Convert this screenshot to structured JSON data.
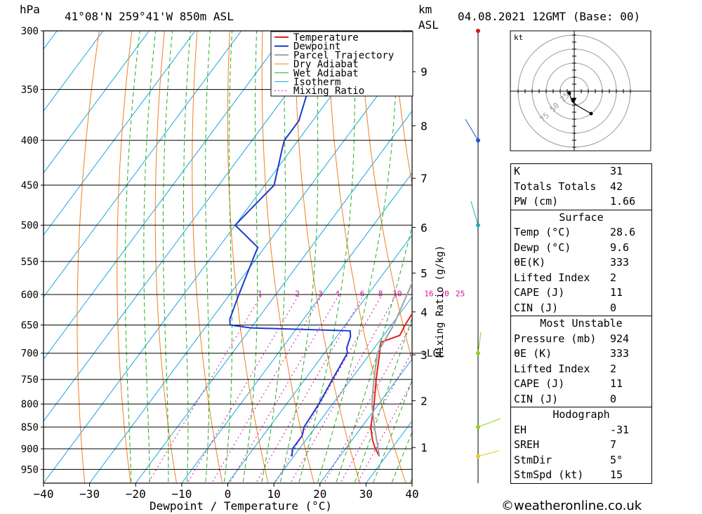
{
  "header": {
    "location": "41°08'N  259°41'W  850m  ASL",
    "date": "04.08.2021  12GMT  (Base: 00)",
    "pressure_unit": "hPa",
    "km_unit": "km",
    "asl_label": "ASL"
  },
  "chart_data": {
    "type": "line",
    "title": "41°08'N  259°41'W  850m  ASL",
    "xlabel": "Dewpoint / Temperature (°C)",
    "ylabel": "hPa",
    "secondary_ylabel": "Mixing Ratio (g/kg)",
    "y_scale": "log-pressure (inverted)",
    "xlim": [
      -40,
      40
    ],
    "ylim": [
      985,
      300
    ],
    "pressure_ticks": [
      300,
      350,
      400,
      450,
      500,
      550,
      600,
      650,
      700,
      750,
      800,
      850,
      900,
      950
    ],
    "x_ticks": [
      -40,
      -30,
      -20,
      -10,
      0,
      10,
      20,
      30,
      40
    ],
    "altitude_km_ticks": [
      "1",
      "2",
      "3",
      "4",
      "5",
      "6",
      "7",
      "8",
      "9"
    ],
    "altitude_km_pressures": [
      897,
      793,
      703,
      628,
      567,
      503,
      442,
      385,
      334
    ],
    "lcl_label": "LCL",
    "lcl_pressure": 700,
    "mixing_ratio_labels": [
      "1",
      "2",
      "3",
      "4",
      "6",
      "8",
      "10",
      "16",
      "20",
      "25"
    ],
    "mixing_ratio_values": [
      1,
      2,
      3,
      4,
      6,
      8,
      10,
      16,
      20,
      25
    ],
    "legend": [
      "Temperature",
      "Dewpoint",
      "Parcel Trajectory",
      "Dry Adiabat",
      "Wet Adiabat",
      "Isotherm",
      "Mixing Ratio"
    ],
    "series": [
      {
        "name": "Temperature",
        "color": "#e02020",
        "p": [
          918,
          900,
          880,
          850,
          800,
          750,
          700,
          680,
          668,
          650,
          620,
          600,
          560,
          540,
          500,
          490,
          470,
          450,
          420,
          400,
          380,
          350,
          320,
          310,
          300
        ],
        "t": [
          28.6,
          26.5,
          24.5,
          22,
          19,
          15.5,
          12,
          10.5,
          13.5,
          13,
          12.5,
          12,
          9,
          6.5,
          4,
          5,
          3,
          0,
          -2,
          -4,
          -8,
          -12,
          -13,
          -13,
          -16
        ]
      },
      {
        "name": "Dewpoint",
        "color": "#1a3ad0",
        "p": [
          918,
          900,
          870,
          850,
          800,
          750,
          700,
          690,
          670,
          660,
          655,
          650,
          640,
          620,
          600,
          540,
          530,
          500,
          450,
          410,
          400,
          380,
          350,
          330,
          320,
          300
        ],
        "t": [
          9.6,
          8.5,
          8.5,
          7.5,
          7,
          6,
          5,
          4,
          3,
          2,
          -20,
          -25,
          -26,
          -27,
          -28,
          -31,
          -31.5,
          -40,
          -38,
          -42,
          -43,
          -43,
          -46,
          -47,
          -45,
          -35
        ]
      },
      {
        "name": "Parcel Trajectory",
        "color": "#a0a0a0",
        "p": [
          918,
          850,
          800,
          750,
          700,
          650,
          600,
          550,
          500,
          450,
          400,
          350,
          300
        ],
        "t": [
          28.6,
          22.8,
          18.5,
          15,
          11.5,
          10.5,
          8.5,
          6.3,
          4,
          1.4,
          -3.5,
          -10,
          -18
        ]
      }
    ],
    "wind_profile": {
      "p": [
        300,
        400,
        500,
        700,
        850,
        918
      ],
      "colors": [
        "#d01a1a",
        "#2050e0",
        "#20b0b0",
        "#90d020",
        "#90d020",
        "#e0d020"
      ]
    },
    "hodograph": {
      "unit": "kt",
      "ring_labels": [
        "25",
        "50",
        "75"
      ]
    }
  },
  "indices": {
    "summary": [
      {
        "label": "K",
        "value": "31"
      },
      {
        "label": "Totals Totals",
        "value": "42"
      },
      {
        "label": "PW (cm)",
        "value": "1.66"
      }
    ],
    "surface": {
      "title": "Surface",
      "rows": [
        {
          "label": "Temp (°C)",
          "value": "28.6"
        },
        {
          "label": "Dewp (°C)",
          "value": "9.6"
        },
        {
          "label": "θE(K)",
          "value": "333"
        },
        {
          "label": "Lifted Index",
          "value": "2"
        },
        {
          "label": "CAPE (J)",
          "value": "11"
        },
        {
          "label": "CIN (J)",
          "value": "0"
        }
      ]
    },
    "most_unstable": {
      "title": "Most Unstable",
      "rows": [
        {
          "label": "Pressure (mb)",
          "value": "924"
        },
        {
          "label": "θE (K)",
          "value": "333"
        },
        {
          "label": "Lifted Index",
          "value": "2"
        },
        {
          "label": "CAPE (J)",
          "value": "11"
        },
        {
          "label": "CIN (J)",
          "value": "0"
        }
      ]
    },
    "hodograph_section": {
      "title": "Hodograph",
      "rows": [
        {
          "label": "EH",
          "value": "-31"
        },
        {
          "label": "SREH",
          "value": "7"
        },
        {
          "label": "StmDir",
          "value": "5°"
        },
        {
          "label": "StmSpd (kt)",
          "value": "15"
        }
      ]
    }
  },
  "footer": {
    "copyright": "©weatheronline.co.uk"
  }
}
